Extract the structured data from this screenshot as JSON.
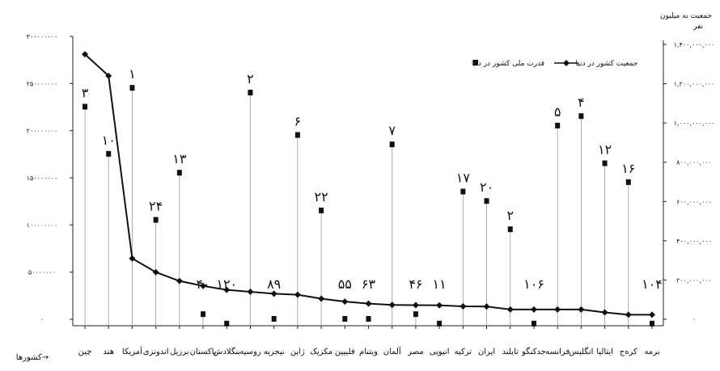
{
  "chart_data": {
    "type": "line",
    "categories": [
      "چین",
      "هند",
      "آمریکا",
      "اندونزی",
      "برزیل",
      "پاکستان",
      "بنگلادش",
      "روسیه",
      "نیجریه",
      "ژاپن",
      "مکزیک",
      "فلیپین",
      "ویتنام",
      "آلمان",
      "مصر",
      "اتیوپی",
      "ترکیه",
      "ایران",
      "تایلند",
      "جدکنگو",
      "فرانسه",
      "انگلیس",
      "ایتالیا",
      "کره‌ج",
      "برمه"
    ],
    "xlabel": "کشورها→",
    "y_right_title_line1": "جمعیت به میلیون",
    "y_right_title_line2": "نفر",
    "left_axis": {
      "ticks": [
        0,
        50000000,
        100000000,
        150000000,
        200000000,
        250000000,
        300000000
      ],
      "tick_labels": [
        "۰",
        "۵۰۰۰۰۰۰۰",
        "۱۰۰۰۰۰۰۰۰",
        "۱۵۰۰۰۰۰۰۰",
        "۲۰۰۰۰۰۰۰۰",
        "۲۵۰۰۰۰۰۰۰",
        "۳۰۰۰۰۰۰۰۰"
      ],
      "ylim": [
        0,
        300000000
      ]
    },
    "right_axis": {
      "ticks": [
        0,
        200000000,
        400000000,
        600000000,
        800000000,
        1000000000,
        1200000000,
        1400000000
      ],
      "tick_labels": [
        "۰",
        "۲۰۰,۰۰۰,۰۰۰",
        "۴۰۰,۰۰۰,۰۰۰",
        "۶۰۰,۰۰۰,۰۰۰",
        "۸۰۰,۰۰۰,۰۰۰",
        "۱,۰۰۰,۰۰۰,۰۰۰",
        "۱,۲۰۰,۰۰۰,۰۰۰",
        "۱,۴۰۰,۰۰۰,۰۰۰"
      ],
      "ylim": [
        0,
        1400000000
      ]
    },
    "series": [
      {
        "name": "جمعیت کشور در دنیا",
        "axis": "right",
        "marker": "diamond",
        "values": [
          1350000000,
          1240000000,
          310000000,
          240000000,
          195000000,
          170000000,
          150000000,
          140000000,
          130000000,
          125000000,
          105000000,
          90000000,
          80000000,
          73000000,
          72000000,
          71000000,
          66000000,
          65000000,
          50000000,
          50000000,
          50000000,
          50000000,
          35000000,
          23000000,
          23000000
        ]
      },
      {
        "name": "قدرت ملی کشور در دنیا",
        "axis": "left",
        "marker": "square",
        "values": [
          225000000,
          175000000,
          245000000,
          105000000,
          155000000,
          5000000,
          -5000000,
          240000000,
          0,
          195000000,
          115000000,
          0,
          0,
          185000000,
          5000000,
          -5000000,
          135000000,
          125000000,
          95000000,
          -5000000,
          205000000,
          215000000,
          165000000,
          145000000,
          -5000000
        ],
        "rank_labels": [
          "۳",
          "۱۰",
          "۱",
          "۲۴",
          "۱۳",
          "۴۰",
          "۱۲۰",
          "۲",
          "۸۹",
          "۶",
          "۲۲",
          "۵۵",
          "۶۳",
          "۷",
          "۴۶",
          "۱۱",
          "۱۷",
          "۲۰",
          "۲",
          "۱۰۶",
          "۵",
          "۴",
          "۱۲",
          "۱۶",
          "۱۰۴"
        ]
      }
    ],
    "grid": false,
    "legend_position": "top-right"
  }
}
